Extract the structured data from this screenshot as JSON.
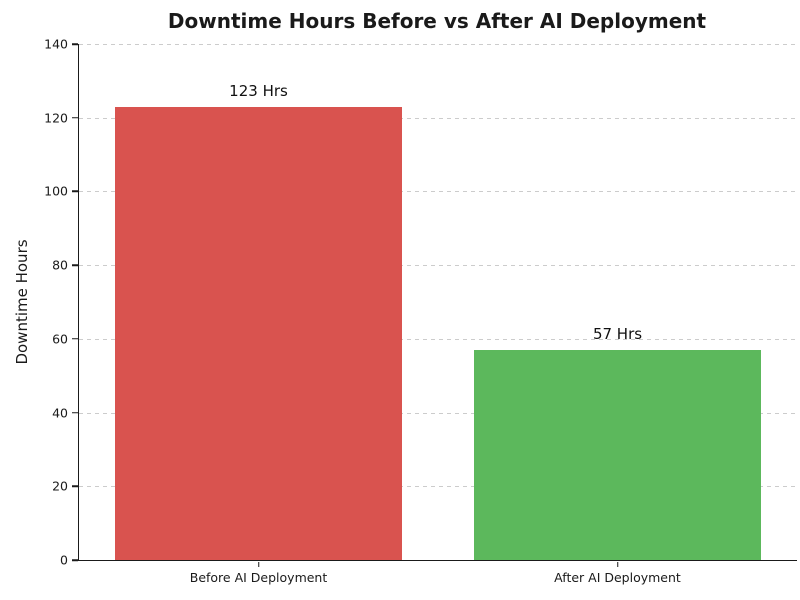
{
  "figure": {
    "background": "#ffffff"
  },
  "chart_data": {
    "type": "bar",
    "title": "Downtime Hours Before vs After AI Deployment",
    "xlabel": "",
    "ylabel": "Downtime Hours",
    "categories": [
      "Before AI Deployment",
      "After AI Deployment"
    ],
    "values": [
      123,
      57
    ],
    "value_labels": [
      "123 Hrs",
      "57 Hrs"
    ],
    "bar_colors": [
      "#d9534f",
      "#5cb85c"
    ],
    "ylim": [
      0,
      140
    ],
    "yticks": [
      0,
      20,
      40,
      60,
      80,
      100,
      120,
      140
    ],
    "grid": {
      "axis": "y",
      "style": "dashed",
      "color": "#cccccc"
    },
    "legend": "none",
    "title_color": "#1a1a1a",
    "axis_color": "#1a1a1a"
  }
}
